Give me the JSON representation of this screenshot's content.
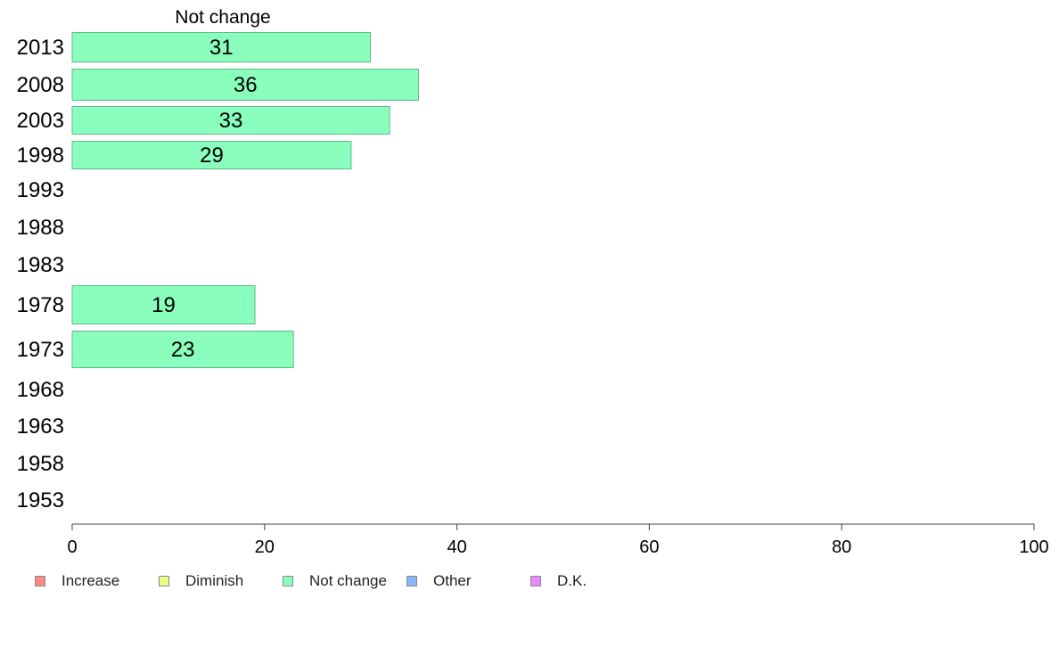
{
  "chart_data": {
    "type": "bar",
    "orientation": "horizontal",
    "title": "Not change",
    "categories": [
      "2013",
      "2008",
      "2003",
      "1998",
      "1993",
      "1988",
      "1983",
      "1978",
      "1973",
      "1968",
      "1963",
      "1958",
      "1953"
    ],
    "series": [
      {
        "name": "Not change",
        "color": "#8affbd",
        "values": [
          31,
          36,
          33,
          29,
          null,
          null,
          null,
          19,
          23,
          null,
          null,
          null,
          null
        ]
      }
    ],
    "xlim": [
      0,
      100
    ],
    "xticks": [
      "0",
      "20",
      "40",
      "60",
      "80",
      "100"
    ],
    "grid": false,
    "legend_placement": "bottom",
    "legend": [
      {
        "name": "Increase",
        "color": "#ff8a8a"
      },
      {
        "name": "Diminish",
        "color": "#eaff8a"
      },
      {
        "name": "Not change",
        "color": "#8affbd"
      },
      {
        "name": "Other",
        "color": "#8ab8ff"
      },
      {
        "name": "D.K.",
        "color": "#ea8aff"
      }
    ]
  }
}
